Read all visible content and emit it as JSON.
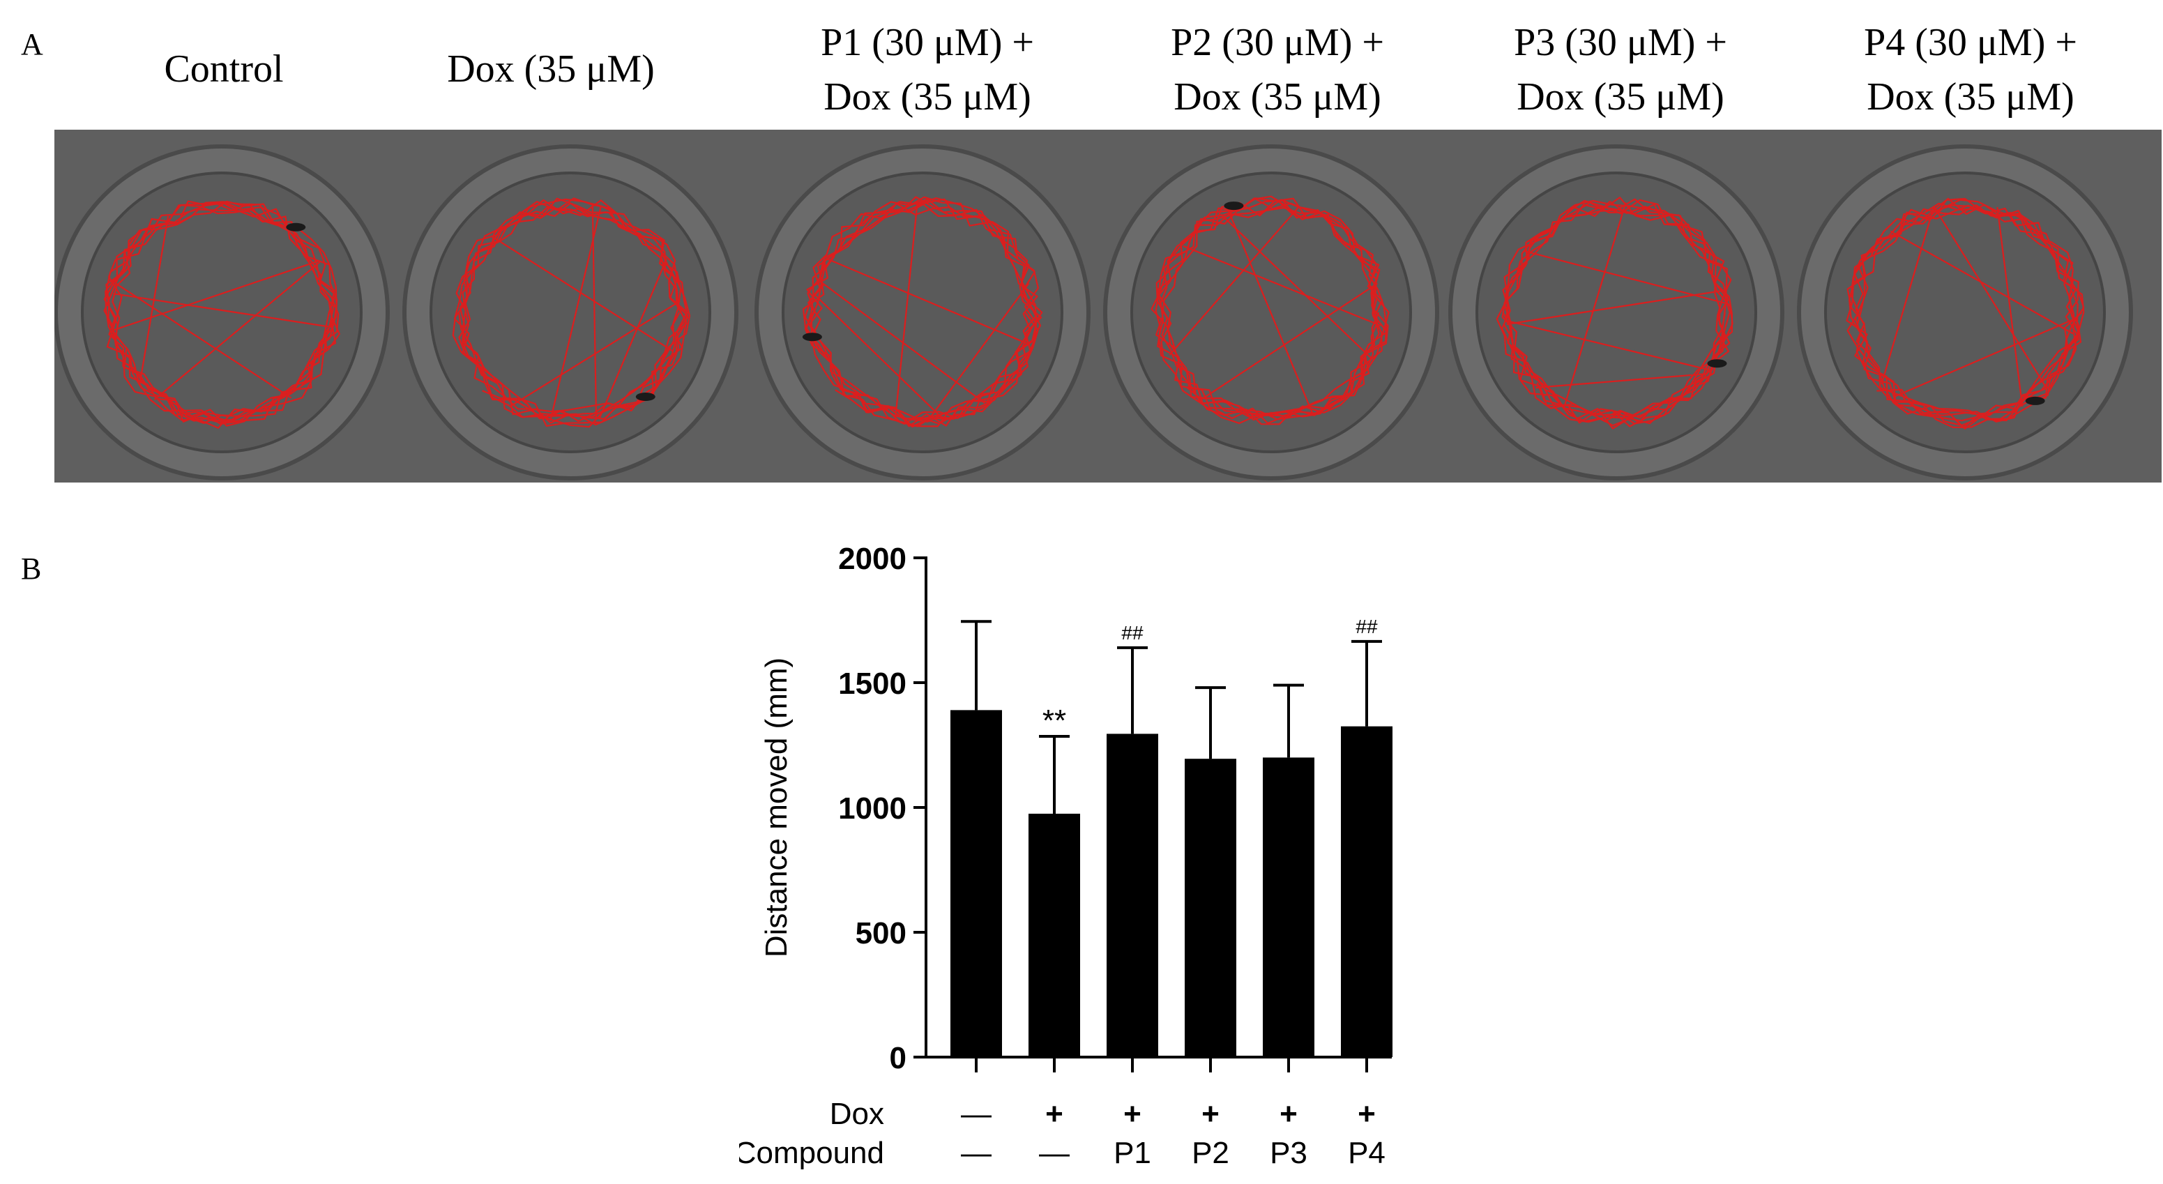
{
  "panel_a": {
    "letter": "A",
    "group_labels": [
      [
        "Control"
      ],
      [
        "Dox (35 μM)"
      ],
      [
        "P1 (30 μM) +",
        "Dox (35 μM)"
      ],
      [
        "P2 (30 μM) +",
        "Dox (35 μM)"
      ],
      [
        "P3 (30 μM) +",
        "Dox (35 μM)"
      ],
      [
        "P4 (30 μM) +",
        "Dox (35 μM)"
      ]
    ],
    "track_color": "#e31b1b",
    "plate_color": "#5f5f5f"
  },
  "panel_b": {
    "letter": "B"
  },
  "chart_data": {
    "type": "bar",
    "categories": [
      "Control",
      "Dox",
      "P1 + Dox",
      "P2 + Dox",
      "P3 + Dox",
      "P4 + Dox"
    ],
    "values": [
      1390,
      975,
      1295,
      1195,
      1200,
      1325
    ],
    "error_upper": [
      1745,
      1285,
      1640,
      1480,
      1490,
      1665
    ],
    "annotations": [
      "",
      "**",
      "##",
      "",
      "",
      "##"
    ],
    "ylabel": "Distance moved (mm)",
    "ylim": [
      0,
      2000
    ],
    "yticks": [
      0,
      500,
      1000,
      1500,
      2000
    ],
    "bar_color": "#000000",
    "grid": false,
    "legend": "none",
    "treatment_table": {
      "rows": [
        {
          "label": "Dox",
          "values": [
            "—",
            "+",
            "+",
            "+",
            "+",
            "+"
          ]
        },
        {
          "label": "Compound",
          "values": [
            "—",
            "—",
            "P1",
            "P2",
            "P3",
            "P4"
          ]
        }
      ]
    }
  }
}
